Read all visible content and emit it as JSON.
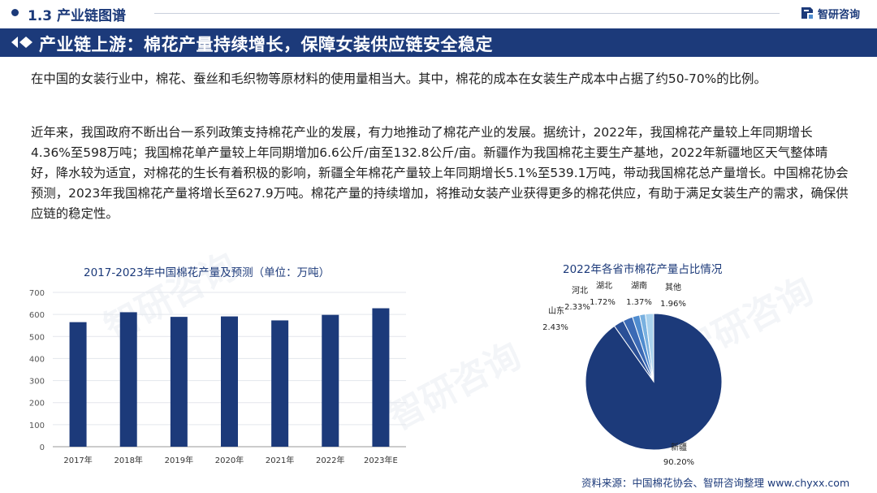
{
  "header": {
    "section": "1.3 产业链图谱",
    "logo_text": "智研咨询"
  },
  "banner": {
    "title": "产业链上游：棉花产量持续增长，保障女装供应链安全稳定"
  },
  "paragraphs": [
    "在中国的女装行业中，棉花、蚕丝和毛织物等原材料的使用量相当大。其中，棉花的成本在女装生产成本中占据了约50-70%的比例。",
    "近年来，我国政府不断出台一系列政策支持棉花产业的发展，有力地推动了棉花产业的发展。据统计，2022年，我国棉花产量较上年同期增长4.36%至598万吨；我国棉花单产量较上年同期增加6.6公斤/亩至132.8公斤/亩。新疆作为我国棉花主要生产基地，2022年新疆地区天气整体晴好，降水较为适宜，对棉花的生长有着积极的影响，新疆全年棉花产量较上年同期增长5.1%至539.1万吨，带动我国棉花总产量增长。中国棉花协会预测，2023年我国棉花产量将增长至627.9万吨。棉花产量的持续增加，将推动女装产业获得更多的棉花供应，有助于满足女装生产的需求，确保供应链的稳定性。"
  ],
  "chart_data": [
    {
      "type": "bar",
      "title": "2017-2023年中国棉花产量及预测（单位：万吨）",
      "categories": [
        "2017年",
        "2018年",
        "2019年",
        "2020年",
        "2021年",
        "2022年",
        "2023年E"
      ],
      "values": [
        565,
        610,
        589,
        591,
        573,
        598,
        628
      ],
      "ylim": [
        0,
        700
      ],
      "yticks": [
        "0",
        "100",
        "200",
        "300",
        "400",
        "500",
        "600",
        "700"
      ],
      "color": "#1c3a7a",
      "grid": true
    },
    {
      "type": "pie",
      "title": "2022年各省市棉花产量占比情况",
      "slices": [
        {
          "name": "新疆",
          "value_label": "90.20%",
          "value": 90.2,
          "color": "#1c3a7a"
        },
        {
          "name": "山东",
          "value_label": "2.43%",
          "value": 2.43,
          "color": "#2a4f96"
        },
        {
          "name": "河北",
          "value_label": "2.33%",
          "value": 2.33,
          "color": "#3b6ab5"
        },
        {
          "name": "湖北",
          "value_label": "1.72%",
          "value": 1.72,
          "color": "#4f8ccf"
        },
        {
          "name": "湖南",
          "value_label": "1.37%",
          "value": 1.37,
          "color": "#79b1e0"
        },
        {
          "name": "其他",
          "value_label": "1.96%",
          "value": 1.96,
          "color": "#a9d2ee"
        }
      ]
    }
  ],
  "source": "资料来源：中国棉花协会、智研咨询整理 www.chyxx.com",
  "watermark": "智研咨询",
  "colors": {
    "brand": "#1c3a7a",
    "divider": "#c9cfdc"
  }
}
